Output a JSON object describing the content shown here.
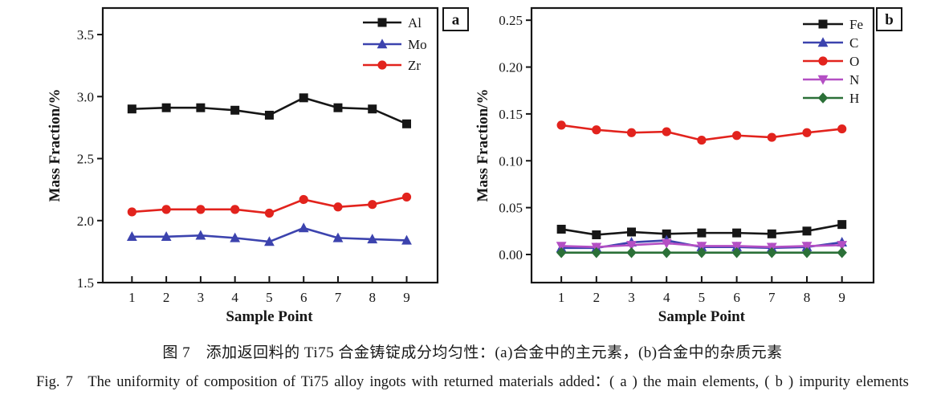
{
  "figure": {
    "caption_zh": "图 7 添加返回料的 Ti75 合金铸锭成分均匀性：(a)合金中的主元素，(b)合金中的杂质元素",
    "caption_en": "Fig. 7 The uniformity of composition of Ti75 alloy ingots with returned materials added：( a ) the main elements, ( b ) impurity elements"
  },
  "chart_data": [
    {
      "type": "line",
      "panel_label": "a",
      "xlabel": "Sample Point",
      "ylabel": "Mass Fraction/%",
      "x": [
        1,
        2,
        3,
        4,
        5,
        6,
        7,
        8,
        9
      ],
      "xtick_labels": [
        "1",
        "2",
        "3",
        "4",
        "5",
        "6",
        "7",
        "8",
        "9"
      ],
      "ytick_values": [
        1.5,
        2.0,
        2.5,
        3.0,
        3.5
      ],
      "ytick_labels": [
        "1.5",
        "2.0",
        "2.5",
        "3.0",
        "3.5"
      ],
      "xlim": [
        0.15,
        9.9
      ],
      "ylim": [
        1.5,
        3.714
      ],
      "grid": false,
      "legend_position": "top-right",
      "series": [
        {
          "name": "Al",
          "color": "#161616",
          "marker": "square",
          "values": [
            2.9,
            2.91,
            2.91,
            2.89,
            2.85,
            2.99,
            2.91,
            2.9,
            2.78
          ]
        },
        {
          "name": "Mo",
          "color": "#3c43ae",
          "marker": "triangle-up",
          "values": [
            1.87,
            1.87,
            1.88,
            1.86,
            1.83,
            1.94,
            1.86,
            1.85,
            1.84
          ]
        },
        {
          "name": "Zr",
          "color": "#e2231d",
          "marker": "circle",
          "values": [
            2.07,
            2.09,
            2.09,
            2.09,
            2.06,
            2.17,
            2.11,
            2.13,
            2.19
          ]
        }
      ]
    },
    {
      "type": "line",
      "panel_label": "b",
      "xlabel": "Sample Point",
      "ylabel": "Mass Fraction/%",
      "x": [
        1,
        2,
        3,
        4,
        5,
        6,
        7,
        8,
        9
      ],
      "xtick_labels": [
        "1",
        "2",
        "3",
        "4",
        "5",
        "6",
        "7",
        "8",
        "9"
      ],
      "ytick_values": [
        0.0,
        0.05,
        0.1,
        0.15,
        0.2,
        0.25
      ],
      "ytick_labels": [
        "0.00",
        "0.05",
        "0.10",
        "0.15",
        "0.20",
        "0.25"
      ],
      "xlim": [
        0.15,
        9.9
      ],
      "ylim": [
        -0.03,
        0.263
      ],
      "grid": false,
      "legend_position": "top-right",
      "series": [
        {
          "name": "Fe",
          "color": "#161616",
          "marker": "square",
          "values": [
            0.027,
            0.021,
            0.024,
            0.022,
            0.023,
            0.023,
            0.022,
            0.025,
            0.032
          ]
        },
        {
          "name": "C",
          "color": "#3c43ae",
          "marker": "triangle-up",
          "values": [
            0.007,
            0.007,
            0.013,
            0.015,
            0.008,
            0.008,
            0.007,
            0.008,
            0.013
          ]
        },
        {
          "name": "O",
          "color": "#e2231d",
          "marker": "circle",
          "values": [
            0.138,
            0.133,
            0.13,
            0.131,
            0.122,
            0.127,
            0.125,
            0.13,
            0.134
          ]
        },
        {
          "name": "N",
          "color": "#b44fc4",
          "marker": "triangle-down",
          "values": [
            0.009,
            0.008,
            0.01,
            0.012,
            0.009,
            0.009,
            0.008,
            0.009,
            0.01
          ]
        },
        {
          "name": "H",
          "color": "#2b7038",
          "marker": "diamond",
          "values": [
            0.002,
            0.002,
            0.002,
            0.002,
            0.002,
            0.002,
            0.002,
            0.002,
            0.002
          ]
        }
      ]
    }
  ]
}
